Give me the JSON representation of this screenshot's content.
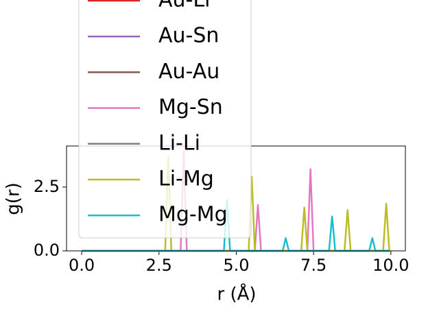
{
  "chart_data": {
    "type": "line",
    "xlabel": "r (Å)",
    "ylabel": "g(r)",
    "x": [
      0,
      2.7,
      2.8,
      2.9,
      3.2,
      3.3,
      3.4,
      4.6,
      4.7,
      4.8,
      5.4,
      5.5,
      5.6,
      5.7,
      5.8,
      6.5,
      6.6,
      6.7,
      7.1,
      7.2,
      7.3,
      7.4,
      7.5,
      8.0,
      8.1,
      8.2,
      8.5,
      8.6,
      8.7,
      9.3,
      9.4,
      9.5,
      9.75,
      9.85,
      9.95
    ],
    "series": [
      {
        "name": "Au-Li",
        "color": "#d62728",
        "values": [
          0,
          0,
          0,
          0,
          0,
          0,
          0,
          0,
          0,
          0,
          0,
          0,
          0,
          0,
          0,
          0,
          0,
          0,
          0,
          0,
          0,
          0,
          0,
          0,
          0,
          0,
          0,
          0,
          0,
          0,
          0,
          0,
          0,
          0,
          0
        ]
      },
      {
        "name": "Au-Sn",
        "color": "#9467bd",
        "values": [
          0,
          0,
          0,
          0,
          0,
          0,
          0,
          0,
          0,
          0,
          0,
          0,
          0,
          0,
          0,
          0,
          0,
          0,
          0,
          0,
          0,
          0,
          0,
          0,
          0,
          0,
          0,
          0,
          0,
          0,
          0,
          0,
          0,
          0,
          0
        ]
      },
      {
        "name": "Au-Au",
        "color": "#8c564b",
        "values": [
          0,
          0,
          0,
          0,
          0,
          0,
          0,
          0,
          0,
          0,
          0,
          0,
          0,
          0,
          0,
          0,
          0,
          0,
          0,
          0,
          0,
          0,
          0,
          0,
          0,
          0,
          0,
          0,
          0,
          0,
          0,
          0,
          0,
          0,
          0
        ]
      },
      {
        "name": "Mg-Sn",
        "color": "#e377c2",
        "values": [
          0,
          0,
          0,
          0,
          0,
          3.9,
          0,
          0,
          0,
          0,
          0,
          0,
          0,
          1.8,
          0,
          0,
          0,
          0,
          0,
          0,
          0,
          3.2,
          0,
          0,
          0,
          0,
          0,
          0,
          0,
          0,
          0,
          0,
          0,
          0,
          0
        ]
      },
      {
        "name": "Li-Li",
        "color": "#7f7f7f",
        "values": [
          0,
          0,
          0,
          0,
          0,
          0,
          0,
          0,
          0,
          0,
          0,
          0,
          0,
          0,
          0,
          0,
          0,
          0,
          0,
          0,
          0,
          0,
          0,
          0,
          0,
          0,
          0,
          0,
          0,
          0,
          0,
          0,
          0,
          0,
          0
        ]
      },
      {
        "name": "Li-Mg",
        "color": "#bcbd22",
        "values": [
          0,
          0,
          3.7,
          0,
          0,
          0,
          0,
          0,
          0,
          0,
          0,
          2.9,
          0,
          0,
          0,
          0,
          0,
          0,
          0,
          1.7,
          0,
          0,
          0,
          0,
          0,
          0,
          0,
          1.6,
          0,
          0,
          0,
          0,
          0,
          1.85,
          0
        ]
      },
      {
        "name": "Mg-Mg",
        "color": "#17becf",
        "values": [
          0,
          0,
          0,
          0,
          0,
          0,
          0,
          0,
          2.0,
          0,
          0,
          0,
          0,
          0,
          0,
          0,
          0.5,
          0,
          0,
          0,
          0,
          0,
          0,
          0,
          1.35,
          0,
          0,
          0,
          0,
          0,
          0.5,
          0,
          0,
          0,
          0
        ]
      }
    ],
    "xlim": [
      -0.49,
      10.47
    ],
    "ylim": [
      0,
      4.11
    ],
    "xticks": [
      {
        "value": 0,
        "label": "0.0"
      },
      2.5,
      {
        "value": 5,
        "label": "5.0"
      },
      7.5,
      {
        "value": 10,
        "label": "10.0"
      }
    ],
    "yticks": [
      {
        "value": 0,
        "label": "0.0"
      },
      2.5
    ]
  }
}
